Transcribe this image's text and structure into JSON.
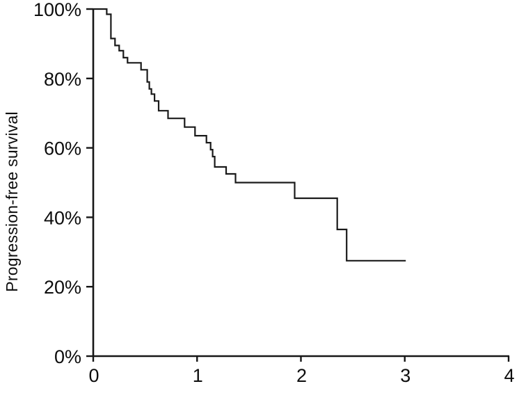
{
  "figure": {
    "background": "#ffffff"
  },
  "chart_data": {
    "type": "line",
    "subtype": "kaplan-meier-step-curve",
    "title": "",
    "xlabel": "",
    "ylabel": "Progression-free survival",
    "xlim": [
      0,
      4
    ],
    "ylim": [
      0,
      100
    ],
    "grid": false,
    "legend": "none",
    "x_ticks": [
      {
        "value": 0,
        "label": "0"
      },
      {
        "value": 1,
        "label": "1"
      },
      {
        "value": 2,
        "label": "2"
      },
      {
        "value": 3,
        "label": "3"
      },
      {
        "value": 4,
        "label": "4"
      }
    ],
    "y_ticks": [
      {
        "value": 0,
        "label": "0%"
      },
      {
        "value": 20,
        "label": "20%"
      },
      {
        "value": 40,
        "label": "40%"
      },
      {
        "value": 60,
        "label": "60%"
      },
      {
        "value": 80,
        "label": "80%"
      },
      {
        "value": 100,
        "label": "100%"
      }
    ],
    "series": [
      {
        "name": "Progression-free survival",
        "draw_style": "steps-post",
        "color": "#1a1a1a",
        "points_format": [
          "time",
          "survival_percent"
        ],
        "points": [
          [
            0.0,
            100
          ],
          [
            0.13,
            98.5
          ],
          [
            0.17,
            91.5
          ],
          [
            0.21,
            89.5
          ],
          [
            0.25,
            88.0
          ],
          [
            0.29,
            86.0
          ],
          [
            0.33,
            84.5
          ],
          [
            0.46,
            82.5
          ],
          [
            0.52,
            79.0
          ],
          [
            0.54,
            77.0
          ],
          [
            0.56,
            75.5
          ],
          [
            0.59,
            73.5
          ],
          [
            0.63,
            70.7
          ],
          [
            0.72,
            68.5
          ],
          [
            0.88,
            66.0
          ],
          [
            0.98,
            63.5
          ],
          [
            1.09,
            61.5
          ],
          [
            1.13,
            59.5
          ],
          [
            1.15,
            57.5
          ],
          [
            1.17,
            54.5
          ],
          [
            1.28,
            52.5
          ],
          [
            1.37,
            50.0
          ],
          [
            1.94,
            45.5
          ],
          [
            2.35,
            36.5
          ],
          [
            2.44,
            27.5
          ],
          [
            3.01,
            27.5
          ]
        ]
      }
    ]
  },
  "colors": {
    "axis": "#161616",
    "curve": "#1a1a1a",
    "text": "#0d0d0d",
    "background": "#ffffff"
  }
}
